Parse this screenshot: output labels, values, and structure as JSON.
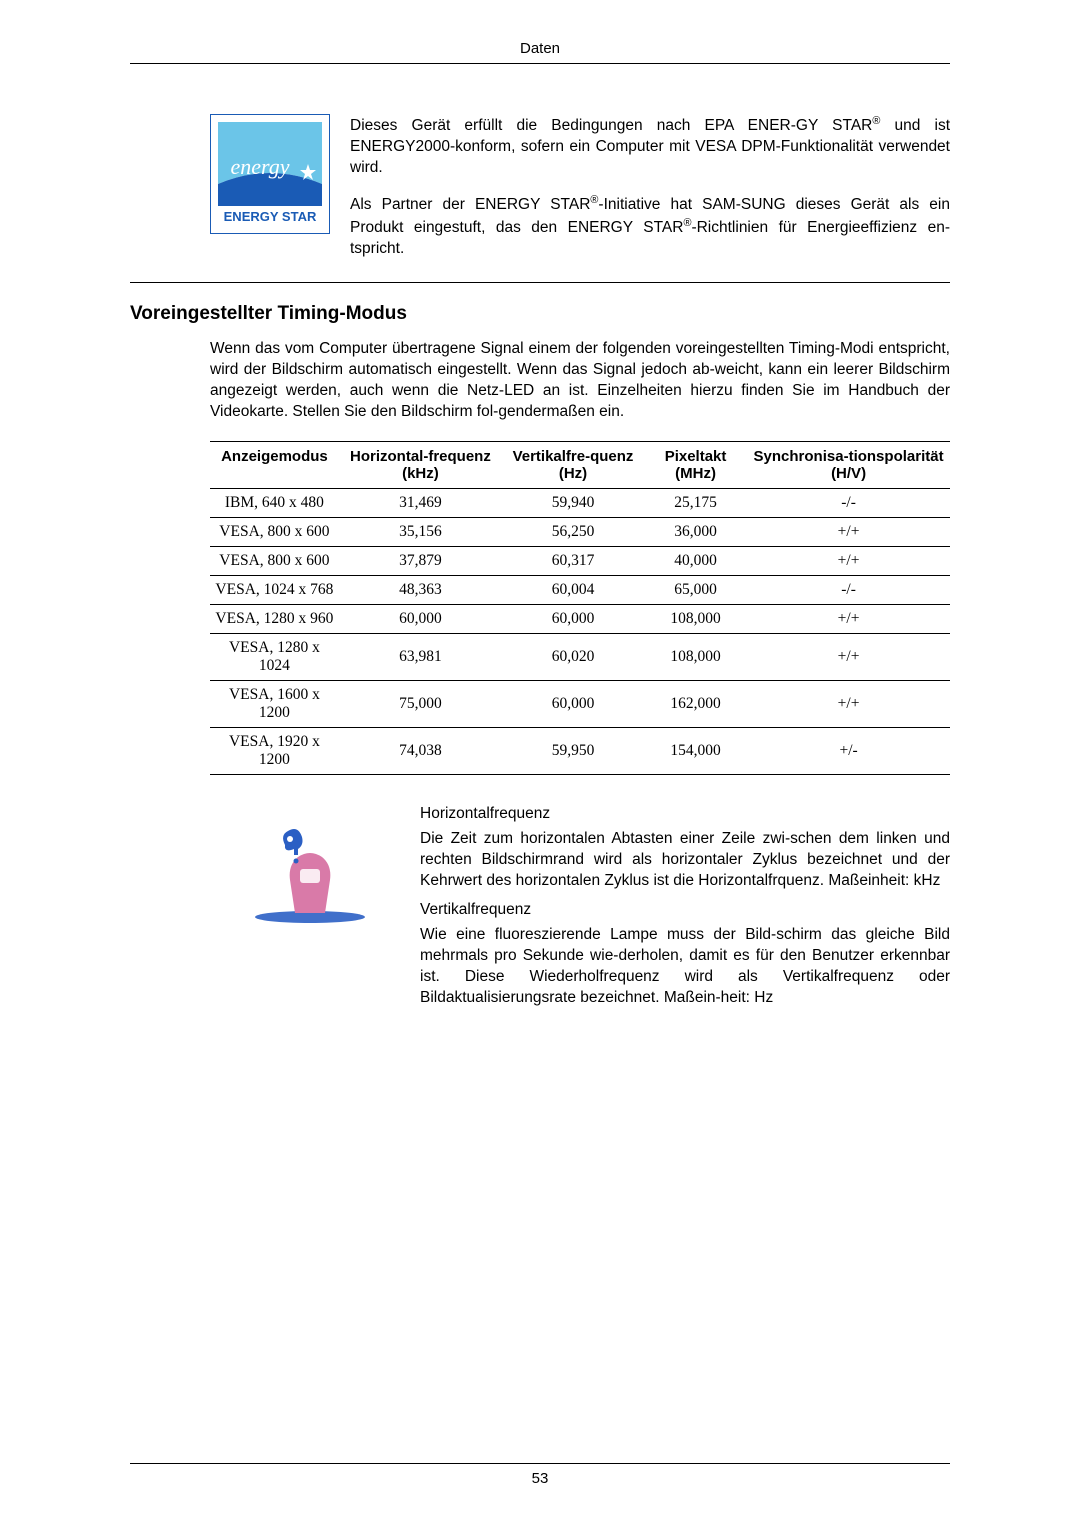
{
  "header": "Daten",
  "energy_block": {
    "para1_a": "Dieses Gerät erfüllt die Bedingungen nach EPA ENER-GY STAR",
    "para1_b": " und ist ENERGY2000-konform, sofern ein Computer mit VESA DPM-Funktionalität verwendet wird.",
    "para2_a": "Als Partner der ENERGY STAR",
    "para2_b": "-Initiative hat SAM-SUNG dieses Gerät als ein Produkt eingestuft, das den ENERGY STAR",
    "para2_c": "-Richtlinien für Energieeffizienz en-tspricht.",
    "reg": "®"
  },
  "section_title": "Voreingestellter Timing-Modus",
  "intro": "Wenn das vom Computer übertragene Signal einem der folgenden voreingestellten Timing-Modi entspricht, wird der Bildschirm automatisch eingestellt. Wenn das Signal jedoch ab-weicht, kann ein leerer Bildschirm angezeigt werden, auch wenn die Netz-LED an ist. Einzelheiten hierzu finden Sie im Handbuch der Videokarte. Stellen Sie den Bildschirm fol-gendermaßen ein.",
  "table": {
    "headers": {
      "mode": "Anzeigemodus",
      "hfreq": "Horizontal-frequenz (kHz)",
      "vfreq": "Vertikalfre-quenz (Hz)",
      "pixclock": "Pixeltakt (MHz)",
      "sync": "Synchronisa-tionspolarität (H/V)"
    },
    "rows": [
      {
        "mode": "IBM, 640 x 480",
        "h": "31,469",
        "v": "59,940",
        "p": "25,175",
        "s": "-/-"
      },
      {
        "mode": "VESA, 800 x 600",
        "h": "35,156",
        "v": "56,250",
        "p": "36,000",
        "s": "+/+"
      },
      {
        "mode": "VESA, 800 x 600",
        "h": "37,879",
        "v": "60,317",
        "p": "40,000",
        "s": "+/+"
      },
      {
        "mode": "VESA, 1024 x 768",
        "h": "48,363",
        "v": "60,004",
        "p": "65,000",
        "s": "-/-"
      },
      {
        "mode": "VESA, 1280 x 960",
        "h": "60,000",
        "v": "60,000",
        "p": "108,000",
        "s": "+/+"
      },
      {
        "mode": "VESA, 1280 x 1024",
        "h": "63,981",
        "v": "60,020",
        "p": "108,000",
        "s": "+/+"
      },
      {
        "mode": "VESA, 1600 x 1200",
        "h": "75,000",
        "v": "60,000",
        "p": "162,000",
        "s": "+/+"
      },
      {
        "mode": "VESA, 1920 x 1200",
        "h": "74,038",
        "v": "59,950",
        "p": "154,000",
        "s": "+/-"
      }
    ]
  },
  "freq": {
    "h_label": "Horizontalfrequenz",
    "h_desc": "Die Zeit zum horizontalen Abtasten einer Zeile zwi-schen dem linken und rechten Bildschirmrand wird als horizontaler Zyklus bezeichnet und der Kehrwert des horizontalen Zyklus ist die Horizontalfrquenz. Maßeinheit: kHz",
    "v_label": "Vertikalfrequenz",
    "v_desc": "Wie eine fluoreszierende Lampe muss der Bild-schirm das gleiche Bild mehrmals pro Sekunde wie-derholen, damit es für den Benutzer erkennbar ist. Diese Wiederholfrequenz wird als Vertikalfrequenz oder Bildaktualisierungsrate bezeichnet. Maßein-heit: Hz"
  },
  "page_number": "53",
  "colors": {
    "energy_blue": "#1a5bb5",
    "energy_cyan": "#6bc5e8",
    "icon_blue": "#2b5fc4",
    "icon_pink": "#d97aa8"
  }
}
